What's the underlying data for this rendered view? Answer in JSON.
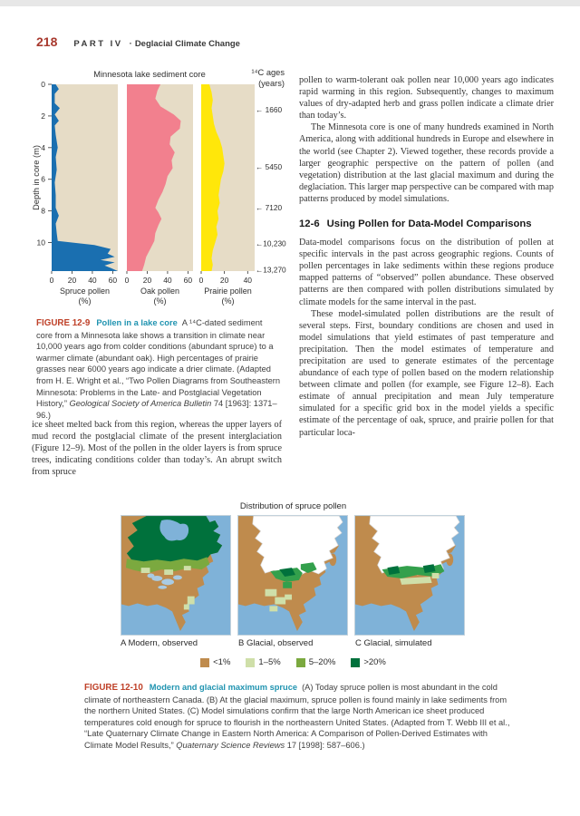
{
  "page": {
    "number": "218",
    "part_label_part": "PART IV",
    "part_label_sep": "·",
    "part_label_title": "Deglacial Climate Change"
  },
  "chart_data": {
    "type": "area",
    "title": "Minnesota lake sediment core",
    "age_axis_line1": "¹⁴C ages",
    "age_axis_line2": "(years)",
    "ylabel": "Depth in core (m)",
    "panel_bg": "#e6dcc6",
    "depth_max": 11.8,
    "depth_ticks": [
      0,
      2,
      4,
      6,
      8,
      10
    ],
    "age_markers": [
      {
        "label": "1660",
        "depth": 1.6
      },
      {
        "label": "5450",
        "depth": 5.2
      },
      {
        "label": "7120",
        "depth": 7.8
      },
      {
        "label": "10,230",
        "depth": 10.05
      },
      {
        "label": "13,270",
        "depth": 11.7
      }
    ],
    "series": [
      {
        "id": "spruce",
        "name": "Spruce pollen (%)",
        "label_line1": "Spruce pollen",
        "label_line2": "(%)",
        "color": "#1a6fb0",
        "x_max": 65,
        "x_ticks": [
          0,
          20,
          40,
          60
        ],
        "points": [
          [
            0,
            4
          ],
          [
            0.3,
            7
          ],
          [
            0.6,
            3
          ],
          [
            1.2,
            3
          ],
          [
            1.5,
            8
          ],
          [
            1.9,
            3
          ],
          [
            2.3,
            7
          ],
          [
            2.6,
            3
          ],
          [
            3.2,
            4
          ],
          [
            4,
            6
          ],
          [
            4.6,
            4
          ],
          [
            5.4,
            5
          ],
          [
            6.2,
            3
          ],
          [
            7,
            4
          ],
          [
            7.8,
            4
          ],
          [
            8.3,
            7
          ],
          [
            8.8,
            4
          ],
          [
            9.4,
            5
          ],
          [
            9.9,
            6
          ],
          [
            10.15,
            42
          ],
          [
            10.4,
            58
          ],
          [
            10.7,
            55
          ],
          [
            10.9,
            62
          ],
          [
            11.1,
            48
          ],
          [
            11.25,
            62
          ],
          [
            11.45,
            52
          ],
          [
            11.6,
            58
          ],
          [
            11.8,
            65
          ]
        ]
      },
      {
        "id": "oak",
        "name": "Oak pollen (%)",
        "label_line1": "Oak pollen",
        "label_line2": "(%)",
        "color": "#f2808e",
        "x_max": 65,
        "x_ticks": [
          0,
          20,
          40,
          60
        ],
        "points": [
          [
            0,
            33
          ],
          [
            0.4,
            30
          ],
          [
            0.9,
            28
          ],
          [
            1.4,
            33
          ],
          [
            1.9,
            46
          ],
          [
            2.3,
            53
          ],
          [
            2.8,
            52
          ],
          [
            3.3,
            43
          ],
          [
            3.8,
            42
          ],
          [
            4.3,
            47
          ],
          [
            4.8,
            44
          ],
          [
            5.3,
            45
          ],
          [
            5.8,
            40
          ],
          [
            6.3,
            38
          ],
          [
            6.8,
            35
          ],
          [
            7.3,
            31
          ],
          [
            7.8,
            28
          ],
          [
            8.1,
            31
          ],
          [
            8.5,
            34
          ],
          [
            8.9,
            31
          ],
          [
            9.4,
            28
          ],
          [
            9.9,
            27
          ],
          [
            10.4,
            23
          ],
          [
            10.9,
            19
          ],
          [
            11.4,
            17
          ],
          [
            11.8,
            15
          ]
        ]
      },
      {
        "id": "prairie",
        "name": "Prairie pollen (%)",
        "label_line1": "Prairie pollen",
        "label_line2": "(%)",
        "color": "#ffe70a",
        "x_max": 46,
        "x_ticks": [
          0,
          20,
          40
        ],
        "points": [
          [
            0,
            7
          ],
          [
            0.5,
            9
          ],
          [
            1,
            10
          ],
          [
            1.5,
            9
          ],
          [
            2,
            10
          ],
          [
            2.5,
            11
          ],
          [
            3,
            13
          ],
          [
            3.5,
            16
          ],
          [
            4,
            18
          ],
          [
            4.5,
            19
          ],
          [
            5,
            20
          ],
          [
            5.5,
            19
          ],
          [
            6,
            17
          ],
          [
            6.5,
            16
          ],
          [
            7,
            15
          ],
          [
            7.5,
            16
          ],
          [
            8,
            14
          ],
          [
            8.5,
            15
          ],
          [
            9,
            13
          ],
          [
            9.5,
            14
          ],
          [
            10,
            12
          ],
          [
            10.5,
            10
          ],
          [
            11,
            9
          ],
          [
            11.4,
            10
          ],
          [
            11.8,
            9
          ]
        ]
      }
    ]
  },
  "figure9": {
    "caption_label": "FIGURE 12-9",
    "caption_title": "Pollen in a lake core",
    "caption_body_1": "A ¹⁴C-dated sediment core from a Minnesota lake shows a transition in climate near 10,000 years ago from colder conditions (abundant spruce) to a warmer climate (abundant oak). High percentages of prairie grasses near 6000 years ago indicate a drier climate.  (Adapted from H. E. Wright et al., “Two Pollen Diagrams from Southeastern Minnesota: Problems in the Late- and Postglacial Vegetation History,” ",
    "caption_journal": "Geological Society of America Bulletin",
    "caption_body_2": " 74 [1963]: 1371–96.)"
  },
  "columns": {
    "left_para": "ice sheet melted back from this region, whereas the upper layers of mud record the postglacial climate of the present interglaciation (Figure 12–9). Most of the pollen in the older layers is from spruce trees, indicating conditions colder than today’s. An abrupt switch from spruce",
    "right_para1": "pollen to warm-tolerant oak pollen near 10,000 years ago indicates rapid warming in this region. Subsequently, changes to maximum values of dry-adapted herb and grass pollen indicate a climate drier than today’s.",
    "right_para2": "The Minnesota core is one of many hundreds examined in North America, along with additional hundreds in Europe and elsewhere in the world (see Chapter 2). Viewed together, these records provide a larger geographic perspective on the pattern of pollen (and vegetation) distribution at the last glacial maximum and during the deglaciation. This larger map perspective can be compared with map patterns produced by model simulations.",
    "section_number": "12-6",
    "section_title": "Using Pollen for Data-Model Comparisons",
    "right_para3": "Data-model comparisons focus on the distribution of pollen at specific intervals in the past across geographic regions. Counts of pollen percentages in lake sediments within these regions produce mapped patterns of “observed” pollen abundance. These observed patterns are then compared with pollen distributions simulated by climate models for the same interval in the past.",
    "right_para4": "These model-simulated pollen distributions are the result of several steps. First, boundary conditions are chosen and used in model simulations that yield estimates of past temperature and precipitation. Then the model estimates of temperature and precipitation are used to generate estimates of the percentage abundance of each type of pollen based on the modern relationship between climate and pollen (for example, see Figure 12–8). Each estimate of annual precipitation and mean July temperature simulated for a specific grid box in the model yields a specific estimate of the percentage of oak, spruce, and prairie pollen for that particular loca-"
  },
  "figure10": {
    "map_title": "Distribution of spruce pollen",
    "map_labels": [
      "A  Modern, observed",
      "B  Glacial, observed",
      "C  Glacial, simulated"
    ],
    "legend": [
      {
        "label": "<1%",
        "color": "#bf8b4d"
      },
      {
        "label": "1–5%",
        "color": "#cfdfa9"
      },
      {
        "label": "5–20%",
        "color": "#7ba93f"
      },
      {
        "label": ">20%",
        "color": "#00713c"
      }
    ],
    "caption_label": "FIGURE 12-10",
    "caption_title": "Modern and glacial maximum spruce",
    "caption_body_1": "(A) Today spruce pollen is most abundant in the cold climate of northeastern Canada. (B) At the glacial maximum, spruce pollen is found mainly in lake sediments from the northern United States. (C) Model simulations confirm that the large North American ice sheet produced temperatures cold enough for spruce to flourish in the northeastern United States.  (Adapted from T. Webb III et al., “Late Quaternary Climate Change in Eastern North America: A Comparison of Pollen-Derived Estimates with Climate Model Results,” ",
    "caption_journal": "Quaternary Science Reviews",
    "caption_body_2": " 17 [1998]: 587–606.)"
  }
}
